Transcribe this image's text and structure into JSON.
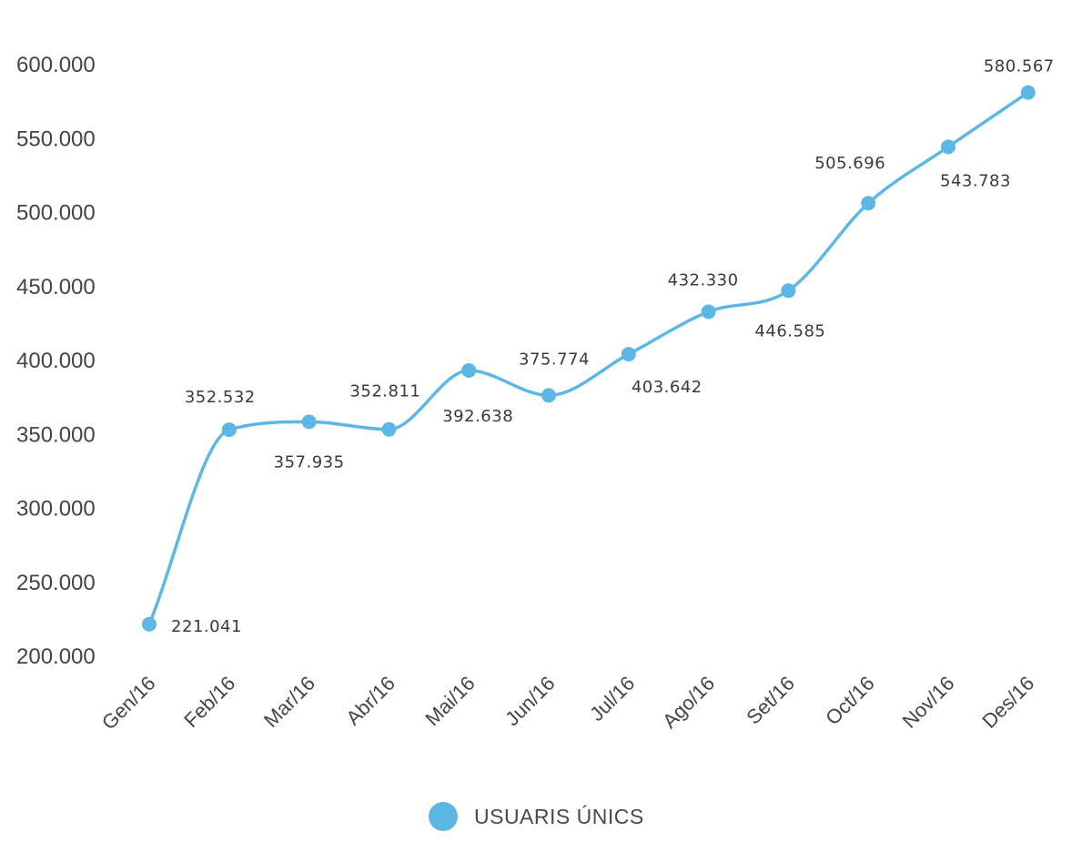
{
  "chart_data": {
    "type": "line",
    "categories": [
      "Gen/16",
      "Feb/16",
      "Mar/16",
      "Abr/16",
      "Mai/16",
      "Jun/16",
      "Jul/16",
      "Ago/16",
      "Set/16",
      "Oct/16",
      "Nov/16",
      "Des/16"
    ],
    "series": [
      {
        "name": "USUARIS ÚNICS",
        "color": "#5db7e4",
        "values": [
          221041,
          352532,
          357935,
          352811,
          392638,
          375774,
          403642,
          432330,
          446585,
          505696,
          543783,
          580567
        ],
        "labels": [
          "221.041",
          "352.532",
          "357.935",
          "352.811",
          "392.638",
          "375.774",
          "403.642",
          "432.330",
          "446.585",
          "505.696",
          "543.783",
          "580.567"
        ]
      }
    ],
    "ylim": [
      200000,
      600000
    ],
    "yticks": [
      {
        "value": 600000,
        "label": "600.000"
      },
      {
        "value": 550000,
        "label": "550.000"
      },
      {
        "value": 500000,
        "label": "500.000"
      },
      {
        "value": 450000,
        "label": "450.000"
      },
      {
        "value": 400000,
        "label": "400.000"
      },
      {
        "value": 350000,
        "label": "350.000"
      },
      {
        "value": 300000,
        "label": "300.000"
      },
      {
        "value": 250000,
        "label": "250.000"
      },
      {
        "value": 200000,
        "label": "200.000"
      }
    ],
    "grid": false,
    "legend": {
      "position": "bottom-center",
      "label": "USUARIS ÚNICS"
    }
  }
}
